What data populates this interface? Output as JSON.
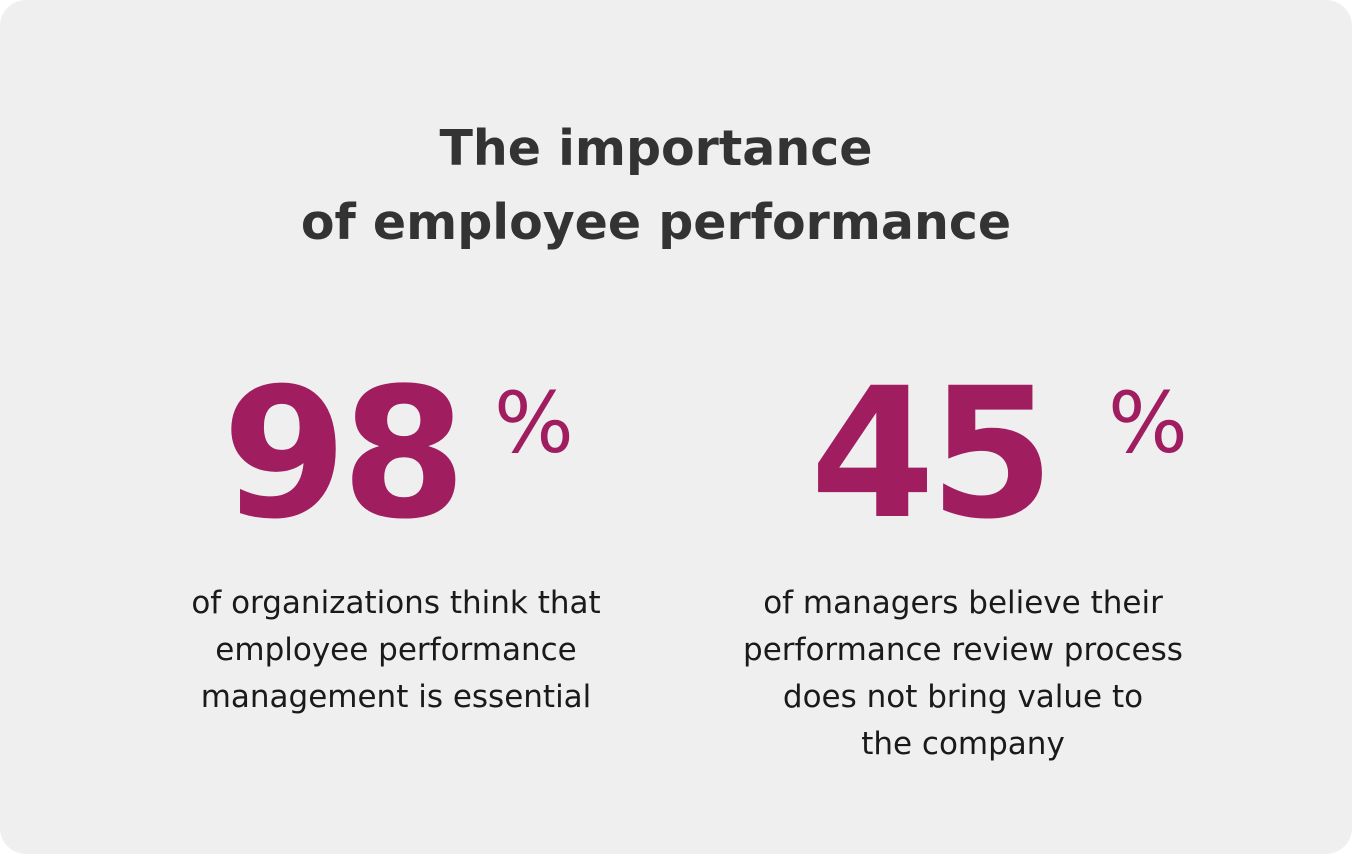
{
  "title": {
    "line1": "The importance",
    "line2": "of employee performance"
  },
  "stats": [
    {
      "value": "98",
      "unit": "%",
      "description": [
        "of organizations think that",
        "employee performance",
        "management is essential"
      ]
    },
    {
      "value": "45",
      "unit": "%",
      "description": [
        "of managers believe their",
        "performance review process",
        "does not bring value to",
        "the company"
      ]
    }
  ],
  "colors": {
    "background": "#efeff0",
    "accent": "#a01d5f",
    "title": "#333333",
    "text": "#1a1a1a"
  }
}
